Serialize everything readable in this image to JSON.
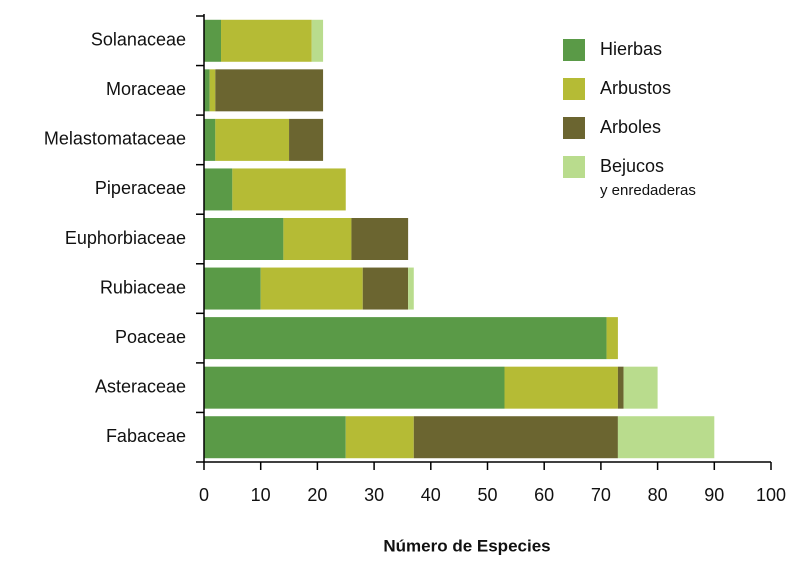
{
  "chart_data": {
    "type": "stacked-barh",
    "x_label": "Número de  Especies",
    "categories": [
      "Solanaceae",
      "Moraceae",
      "Melastomataceae",
      "Piperaceae",
      "Euphorbiaceae",
      "Rubiaceae",
      "Poaceae",
      "Asteraceae",
      "Fabaceae"
    ],
    "series": [
      {
        "name": "Hierbas",
        "color": "#5a9a47",
        "values": [
          3,
          1,
          2,
          5,
          14,
          10,
          71,
          53,
          25
        ]
      },
      {
        "name": "Arbustos",
        "color": "#b5bb35",
        "values": [
          16,
          1,
          13,
          20,
          12,
          18,
          2,
          20,
          12
        ]
      },
      {
        "name": "Arboles",
        "color": "#6b6530",
        "values": [
          0,
          19,
          6,
          0,
          10,
          8,
          0,
          1,
          36
        ]
      },
      {
        "name": "Bejucos",
        "color": "#b9dc8d",
        "values": [
          2,
          0,
          0,
          0,
          0,
          1,
          0,
          6,
          17
        ]
      }
    ],
    "legend_note": "y enredaderas",
    "xlim": [
      0,
      100
    ],
    "xticks": [
      0,
      10,
      20,
      30,
      40,
      50,
      60,
      70,
      80,
      90,
      100
    ]
  }
}
